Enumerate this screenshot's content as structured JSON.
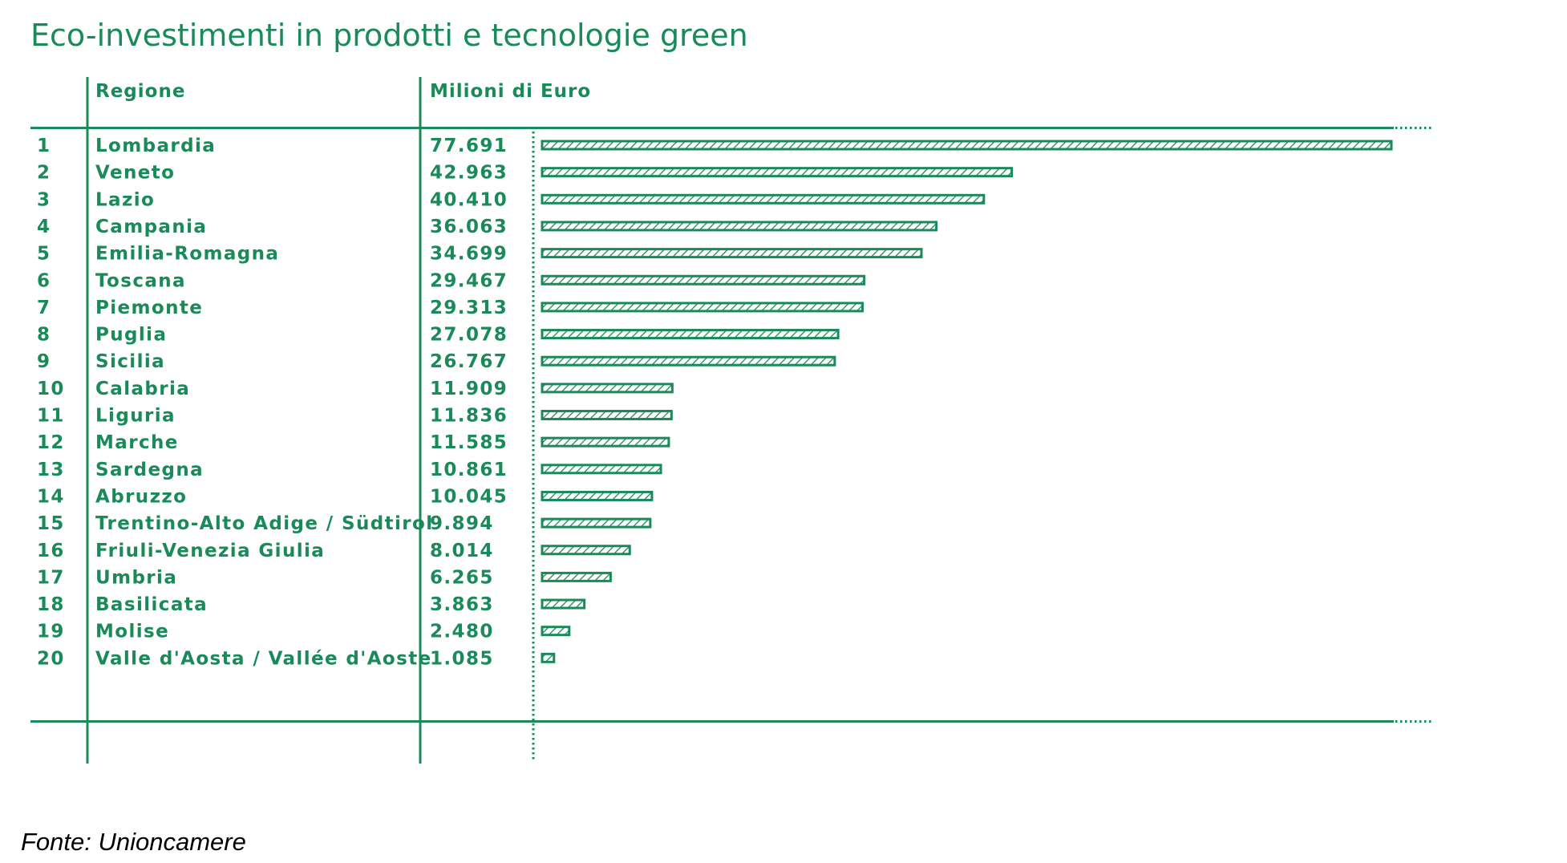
{
  "colors": {
    "accent": "#1a8a5a",
    "source_text": "#000000",
    "background": "#ffffff"
  },
  "chart_data": {
    "type": "bar",
    "orientation": "horizontal",
    "title": "Eco-investimenti in prodotti e tecnologie green",
    "columns": {
      "rank": "",
      "region": "Regione",
      "value": "Milioni di Euro"
    },
    "grid": false,
    "legend": "none",
    "bar_style": "hatched-outline",
    "xlim": [
      0,
      77691
    ],
    "rows": [
      {
        "rank": "1",
        "region": "Lombardia",
        "value_label": "77.691",
        "value": 77691
      },
      {
        "rank": "2",
        "region": "Veneto",
        "value_label": "42.963",
        "value": 42963
      },
      {
        "rank": "3",
        "region": "Lazio",
        "value_label": "40.410",
        "value": 40410
      },
      {
        "rank": "4",
        "region": "Campania",
        "value_label": "36.063",
        "value": 36063
      },
      {
        "rank": "5",
        "region": "Emilia-Romagna",
        "value_label": "34.699",
        "value": 34699
      },
      {
        "rank": "6",
        "region": "Toscana",
        "value_label": "29.467",
        "value": 29467
      },
      {
        "rank": "7",
        "region": "Piemonte",
        "value_label": "29.313",
        "value": 29313
      },
      {
        "rank": "8",
        "region": "Puglia",
        "value_label": "27.078",
        "value": 27078
      },
      {
        "rank": "9",
        "region": "Sicilia",
        "value_label": "26.767",
        "value": 26767
      },
      {
        "rank": "10",
        "region": "Calabria",
        "value_label": "11.909",
        "value": 11909
      },
      {
        "rank": "11",
        "region": "Liguria",
        "value_label": "11.836",
        "value": 11836
      },
      {
        "rank": "12",
        "region": "Marche",
        "value_label": "11.585",
        "value": 11585
      },
      {
        "rank": "13",
        "region": "Sardegna",
        "value_label": "10.861",
        "value": 10861
      },
      {
        "rank": "14",
        "region": "Abruzzo",
        "value_label": "10.045",
        "value": 10045
      },
      {
        "rank": "15",
        "region": "Trentino-Alto Adige / Südtirol",
        "value_label": "9.894",
        "value": 9894
      },
      {
        "rank": "16",
        "region": "Friuli-Venezia Giulia",
        "value_label": "8.014",
        "value": 8014
      },
      {
        "rank": "17",
        "region": "Umbria",
        "value_label": "6.265",
        "value": 6265
      },
      {
        "rank": "18",
        "region": "Basilicata",
        "value_label": "3.863",
        "value": 3863
      },
      {
        "rank": "19",
        "region": "Molise",
        "value_label": "2.480",
        "value": 2480
      },
      {
        "rank": "20",
        "region": "Valle d'Aosta / Vallée d'Aoste",
        "value_label": "1.085",
        "value": 1085
      }
    ],
    "source": "Fonte: Unioncamere"
  }
}
